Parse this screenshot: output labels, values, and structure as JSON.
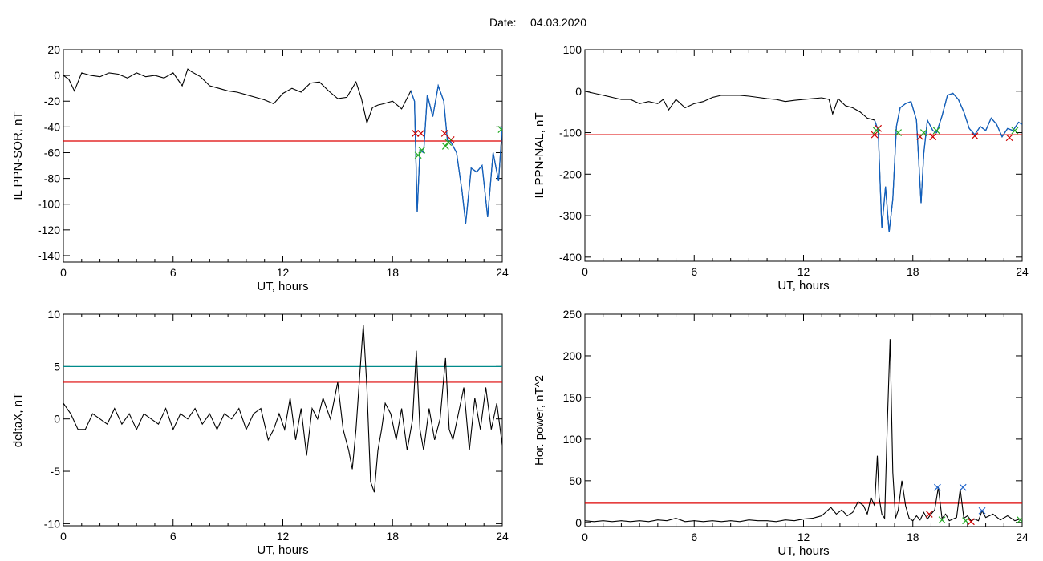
{
  "header": {
    "date_label": "Date:",
    "date_value": "04.03.2020"
  },
  "colors": {
    "trace": "#000000",
    "threshold": "#dd0000",
    "threshold2": "#008b8b",
    "highlight": "#1060c0",
    "marker_red": "#cc0000",
    "marker_green": "#22aa22",
    "marker_blue": "#2266cc"
  },
  "chart_data": [
    {
      "id": "p1",
      "type": "line",
      "ylabel": "IL PPN-SOR, nT",
      "xlabel": "UT, hours",
      "xlim": [
        0,
        24
      ],
      "ylim": [
        -145,
        20
      ],
      "xticks": [
        0,
        6,
        12,
        18,
        24
      ],
      "yticks": [
        20,
        0,
        -20,
        -40,
        -60,
        -80,
        -100,
        -120,
        -140
      ],
      "x": [
        0,
        0.3,
        0.6,
        1,
        1.5,
        2,
        2.5,
        3,
        3.5,
        4,
        4.5,
        5,
        5.5,
        6,
        6.5,
        6.8,
        7,
        7.5,
        8,
        8.5,
        9,
        9.5,
        10,
        10.5,
        11,
        11.5,
        12,
        12.5,
        13,
        13.5,
        14,
        14.5,
        15,
        15.5,
        16,
        16.3,
        16.6,
        16.9,
        17.2,
        17.5,
        18,
        18.5,
        19,
        19.2,
        19.35,
        19.5,
        19.7,
        19.9,
        20.2,
        20.5,
        20.8,
        21,
        21.2,
        21.5,
        21.8,
        22,
        22.3,
        22.6,
        22.9,
        23.2,
        23.5,
        23.8,
        24
      ],
      "y": [
        0,
        -3,
        -12,
        2,
        0,
        -1,
        2,
        1,
        -2,
        2,
        -1,
        0,
        -2,
        2,
        -8,
        5,
        3,
        -1,
        -8,
        -10,
        -12,
        -13,
        -15,
        -17,
        -19,
        -22,
        -14,
        -10,
        -13,
        -6,
        -5,
        -12,
        -18,
        -17,
        -5,
        -18,
        -37,
        -25,
        -23,
        -22,
        -20,
        -26,
        -12,
        -20,
        -106,
        -58,
        -60,
        -15,
        -32,
        -8,
        -20,
        -50,
        -52,
        -60,
        -90,
        -115,
        -72,
        -75,
        -70,
        -110,
        -60,
        -82,
        -40
      ],
      "thresholds": [
        {
          "value": -51,
          "color": "#dd0000"
        }
      ],
      "highlight_from": 19.0,
      "markers": [
        {
          "x": 19.25,
          "y": -45,
          "color": "#cc0000"
        },
        {
          "x": 19.55,
          "y": -45,
          "color": "#cc0000"
        },
        {
          "x": 19.4,
          "y": -62,
          "color": "#22aa22"
        },
        {
          "x": 19.6,
          "y": -58,
          "color": "#22aa22"
        },
        {
          "x": 20.85,
          "y": -45,
          "color": "#cc0000"
        },
        {
          "x": 21.2,
          "y": -50,
          "color": "#cc0000"
        },
        {
          "x": 20.9,
          "y": -55,
          "color": "#22aa22"
        },
        {
          "x": 21.05,
          "y": -52,
          "color": "#22aa22"
        },
        {
          "x": 23.95,
          "y": -42,
          "color": "#22aa22"
        }
      ]
    },
    {
      "id": "p2",
      "type": "line",
      "ylabel": "IL PPN-NAL, nT",
      "xlabel": "UT, hours",
      "xlim": [
        0,
        24
      ],
      "ylim": [
        -410,
        100
      ],
      "xticks": [
        0,
        6,
        12,
        18,
        24
      ],
      "yticks": [
        100,
        0,
        -100,
        -200,
        -300,
        -400
      ],
      "x": [
        0,
        0.5,
        1,
        1.5,
        2,
        2.5,
        3,
        3.5,
        4,
        4.3,
        4.6,
        5,
        5.5,
        6,
        6.5,
        7,
        7.5,
        8,
        8.5,
        9,
        9.5,
        10,
        10.5,
        11,
        11.5,
        12,
        12.5,
        13,
        13.4,
        13.6,
        13.9,
        14.3,
        14.7,
        15.1,
        15.5,
        15.9,
        16.1,
        16.3,
        16.5,
        16.7,
        16.9,
        17.1,
        17.3,
        17.6,
        17.9,
        18.2,
        18.45,
        18.6,
        18.8,
        19.1,
        19.3,
        19.6,
        19.9,
        20.2,
        20.5,
        20.8,
        21.1,
        21.4,
        21.7,
        22,
        22.3,
        22.6,
        22.9,
        23.2,
        23.5,
        23.8,
        24
      ],
      "y": [
        0,
        -5,
        -10,
        -15,
        -20,
        -20,
        -30,
        -25,
        -30,
        -20,
        -45,
        -20,
        -40,
        -30,
        -25,
        -15,
        -10,
        -10,
        -10,
        -12,
        -15,
        -18,
        -20,
        -25,
        -22,
        -20,
        -18,
        -16,
        -20,
        -55,
        -18,
        -35,
        -40,
        -50,
        -65,
        -70,
        -95,
        -330,
        -230,
        -340,
        -260,
        -85,
        -40,
        -30,
        -25,
        -70,
        -270,
        -150,
        -70,
        -95,
        -100,
        -60,
        -10,
        -5,
        -20,
        -50,
        -90,
        -105,
        -85,
        -95,
        -65,
        -80,
        -110,
        -90,
        -95,
        -75,
        -80
      ],
      "thresholds": [
        {
          "value": -105,
          "color": "#dd0000"
        }
      ],
      "highlight_from": 15.9,
      "markers": [
        {
          "x": 15.9,
          "y": -105,
          "color": "#cc0000"
        },
        {
          "x": 16.1,
          "y": -90,
          "color": "#cc0000"
        },
        {
          "x": 16.0,
          "y": -95,
          "color": "#22aa22"
        },
        {
          "x": 17.2,
          "y": -100,
          "color": "#22aa22"
        },
        {
          "x": 18.4,
          "y": -110,
          "color": "#cc0000"
        },
        {
          "x": 18.6,
          "y": -100,
          "color": "#22aa22"
        },
        {
          "x": 19.1,
          "y": -110,
          "color": "#cc0000"
        },
        {
          "x": 19.3,
          "y": -95,
          "color": "#22aa22"
        },
        {
          "x": 21.4,
          "y": -108,
          "color": "#cc0000"
        },
        {
          "x": 23.3,
          "y": -112,
          "color": "#cc0000"
        },
        {
          "x": 23.6,
          "y": -95,
          "color": "#22aa22"
        }
      ]
    },
    {
      "id": "p3",
      "type": "line",
      "ylabel": "deltaX, nT",
      "xlabel": "UT, hours",
      "xlim": [
        0,
        24
      ],
      "ylim": [
        -10.2,
        10
      ],
      "xticks": [
        0,
        6,
        12,
        18,
        24
      ],
      "yticks": [
        10,
        5,
        0,
        -5,
        -10
      ],
      "x": [
        0,
        0.4,
        0.8,
        1.2,
        1.6,
        2,
        2.4,
        2.8,
        3.2,
        3.6,
        4,
        4.4,
        4.8,
        5.2,
        5.6,
        6,
        6.4,
        6.8,
        7.2,
        7.6,
        8,
        8.4,
        8.8,
        9.2,
        9.6,
        10,
        10.4,
        10.8,
        11.2,
        11.5,
        11.8,
        12.1,
        12.4,
        12.7,
        13,
        13.3,
        13.6,
        13.9,
        14.2,
        14.6,
        15,
        15.3,
        15.6,
        15.8,
        16,
        16.2,
        16.4,
        16.6,
        16.8,
        17,
        17.2,
        17.4,
        17.6,
        17.9,
        18.2,
        18.5,
        18.8,
        19.1,
        19.3,
        19.5,
        19.7,
        20,
        20.3,
        20.6,
        20.9,
        21.1,
        21.3,
        21.6,
        21.9,
        22.2,
        22.5,
        22.8,
        23.1,
        23.4,
        23.7,
        24
      ],
      "y": [
        1.5,
        0.5,
        -1,
        -1,
        0.5,
        0,
        -0.5,
        1,
        -0.5,
        0.5,
        -1,
        0.5,
        0,
        -0.5,
        1,
        -1,
        0.5,
        0,
        1,
        -0.5,
        0.5,
        -1,
        0.5,
        0,
        1,
        -1,
        0.5,
        1,
        -2,
        -1,
        0.5,
        -1,
        2,
        -2,
        1,
        -3.5,
        1,
        0,
        2,
        0,
        3.5,
        -1,
        -3,
        -4.8,
        -1,
        4,
        9,
        3,
        -6,
        -7,
        -3,
        -1,
        1.5,
        0.5,
        -2,
        1,
        -3,
        0,
        6.5,
        -1,
        -3,
        1,
        -2,
        0,
        5.8,
        -1,
        -2,
        0.5,
        3,
        -3,
        2,
        -1,
        3,
        -1,
        1.5,
        -2.5
      ],
      "thresholds": [
        {
          "value": 5,
          "color": "#008b8b"
        },
        {
          "value": 3.5,
          "color": "#dd0000"
        }
      ],
      "highlight_from": null,
      "markers": []
    },
    {
      "id": "p4",
      "type": "line",
      "ylabel": "Hor. power, nT^2",
      "xlabel": "UT, hours",
      "xlim": [
        0,
        24
      ],
      "ylim": [
        -5,
        250
      ],
      "xticks": [
        0,
        6,
        12,
        18,
        24
      ],
      "yticks": [
        250,
        200,
        150,
        100,
        50,
        0
      ],
      "x": [
        0,
        0.5,
        1,
        1.5,
        2,
        2.5,
        3,
        3.5,
        4,
        4.5,
        5,
        5.5,
        6,
        6.5,
        7,
        7.5,
        8,
        8.5,
        9,
        9.5,
        10,
        10.5,
        11,
        11.5,
        12,
        12.5,
        13,
        13.5,
        13.8,
        14.1,
        14.4,
        14.7,
        15,
        15.3,
        15.5,
        15.7,
        15.9,
        16.05,
        16.15,
        16.3,
        16.45,
        16.6,
        16.75,
        16.9,
        17.05,
        17.2,
        17.4,
        17.6,
        17.8,
        18,
        18.2,
        18.4,
        18.6,
        18.8,
        19,
        19.2,
        19.4,
        19.6,
        19.8,
        20,
        20.2,
        20.4,
        20.6,
        20.8,
        21,
        21.2,
        21.4,
        21.6,
        21.8,
        22,
        22.4,
        22.8,
        23.2,
        23.6,
        24
      ],
      "y": [
        2,
        1,
        2,
        1,
        2,
        1,
        2,
        1,
        3,
        2,
        5,
        1,
        2,
        1,
        2,
        1,
        2,
        1,
        3,
        2,
        2,
        1,
        3,
        2,
        4,
        5,
        8,
        18,
        10,
        15,
        8,
        12,
        25,
        20,
        10,
        30,
        20,
        80,
        30,
        10,
        5,
        120,
        220,
        60,
        5,
        15,
        50,
        20,
        5,
        2,
        8,
        3,
        12,
        4,
        10,
        15,
        42,
        5,
        10,
        2,
        4,
        6,
        40,
        5,
        8,
        2,
        4,
        2,
        14,
        6,
        10,
        3,
        8,
        2,
        5
      ],
      "thresholds": [
        {
          "value": 23,
          "color": "#dd0000"
        }
      ],
      "highlight_from": null,
      "markers": [
        {
          "x": 18.9,
          "y": 10,
          "color": "#cc0000"
        },
        {
          "x": 19.35,
          "y": 42,
          "color": "#2266cc"
        },
        {
          "x": 20.75,
          "y": 42,
          "color": "#2266cc"
        },
        {
          "x": 19.6,
          "y": 3,
          "color": "#22aa22"
        },
        {
          "x": 20.9,
          "y": 2,
          "color": "#22aa22"
        },
        {
          "x": 21.2,
          "y": 1,
          "color": "#cc0000"
        },
        {
          "x": 21.8,
          "y": 14,
          "color": "#2266cc"
        },
        {
          "x": 23.9,
          "y": 3,
          "color": "#22aa22"
        }
      ]
    }
  ]
}
